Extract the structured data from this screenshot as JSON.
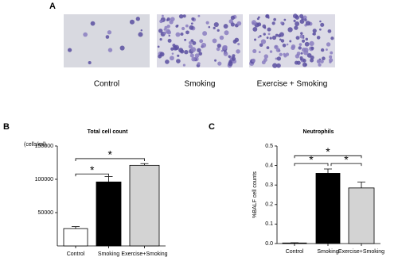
{
  "panel_a": {
    "label": "A",
    "captions": [
      "Control",
      "Smoking",
      "Exercise + Smoking"
    ]
  },
  "chart_data": [
    {
      "type": "bar",
      "panel": "B",
      "title": "Total cell count",
      "ylabel": "(cells/ml)",
      "categories": [
        "Control",
        "Smoking",
        "Exercise+Smoking"
      ],
      "values": [
        26000,
        96000,
        121000
      ],
      "errors": [
        3000,
        8000,
        2500
      ],
      "colors": [
        "#ffffff",
        "#000000",
        "#d3d3d3"
      ],
      "ylim": [
        0,
        150000
      ],
      "yticks": [
        50000,
        100000,
        150000
      ],
      "annotations": [
        "*",
        "*"
      ]
    },
    {
      "type": "bar",
      "panel": "C",
      "title": "Neutrophils",
      "ylabel": "%BALF cell counts",
      "categories": [
        "Control",
        "Smoking",
        "Exercise+Smoking"
      ],
      "values": [
        0.003,
        0.36,
        0.285
      ],
      "errors": [
        0.001,
        0.022,
        0.03
      ],
      "colors": [
        "#ffffff",
        "#000000",
        "#d3d3d3"
      ],
      "ylim": [
        0,
        0.5
      ],
      "yticks": [
        {
          "value": 0,
          "label": "0.0"
        },
        0.1,
        0.2,
        0.3,
        0.4,
        0.5
      ],
      "annotations": [
        "*",
        "*",
        "*"
      ]
    }
  ]
}
